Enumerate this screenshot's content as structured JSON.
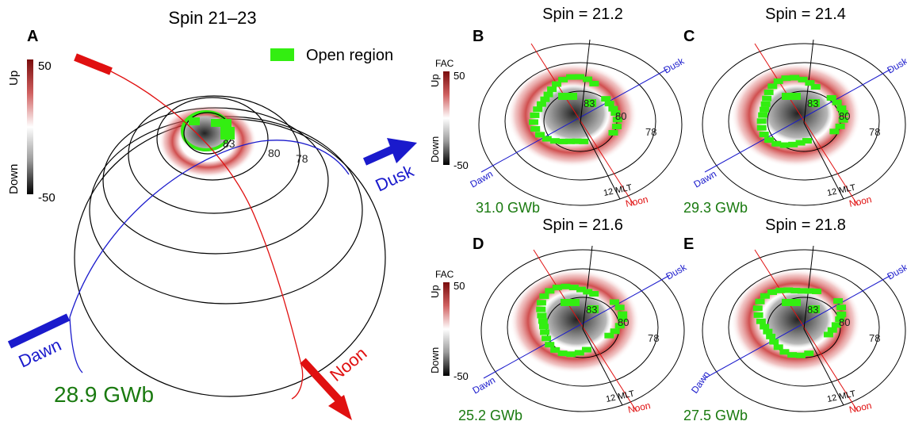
{
  "panel_a": {
    "letter": "A",
    "title": "Spin 21–23",
    "legend_label": "Open region",
    "flux": "28.9 GWb",
    "lat_labels": [
      "83",
      "80",
      "78"
    ],
    "dusk": "Dusk",
    "dawn": "Dawn",
    "noon": "Noon",
    "colorbar": {
      "up": "Up",
      "down": "Down",
      "max": "50",
      "min": "-50"
    }
  },
  "panels": [
    {
      "letter": "B",
      "title": "Spin = 21.2",
      "flux": "31.0 GWb"
    },
    {
      "letter": "C",
      "title": "Spin = 21.4",
      "flux": "29.3 GWb"
    },
    {
      "letter": "D",
      "title": "Spin = 21.6",
      "flux": "25.2 GWb"
    },
    {
      "letter": "E",
      "title": "Spin = 21.8",
      "flux": "27.5 GWb"
    }
  ],
  "small_panel_labels": {
    "lat_labels": [
      "83",
      "80",
      "78"
    ],
    "mlt": "12 MLT",
    "noon": "Noon",
    "dawn": "Dawn",
    "dusk": "Dusk"
  },
  "small_colorbar": {
    "title": "FAC",
    "up": "Up",
    "down": "Down",
    "max": "50",
    "min": "-50"
  },
  "colors": {
    "open_region": "#33ee11",
    "upward": "#b01818",
    "downward": "#111111",
    "flux_text": "#1a7a10",
    "dawn_dusk_axis": "#1a1acc",
    "noon_axis": "#e01010"
  }
}
